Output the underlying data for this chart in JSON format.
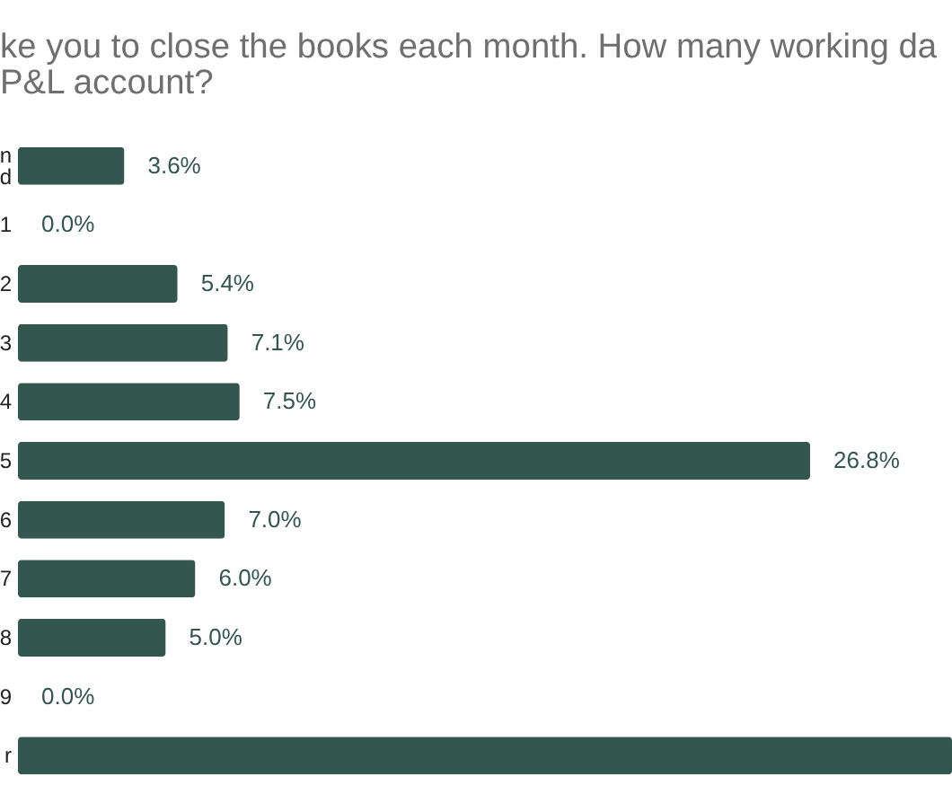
{
  "chart_data": {
    "type": "bar",
    "orientation": "horizontal",
    "title": "ke you to close the books each month. How many working da\nP&L account?",
    "categories": [
      "n\nd",
      "1",
      "2",
      "3",
      "4",
      "5",
      "6",
      "7",
      "8",
      "9",
      "r"
    ],
    "values": [
      3.6,
      0.0,
      5.4,
      7.1,
      7.5,
      26.8,
      7.0,
      6.0,
      5.0,
      0.0,
      31.6
    ],
    "color": "#33564f",
    "value_labels": [
      "3.6%",
      "0.0%",
      "5.4%",
      "7.1%",
      "7.5%",
      "26.8%",
      "7.0%",
      "6.0%",
      "5.0%",
      "0.0%",
      null
    ]
  }
}
